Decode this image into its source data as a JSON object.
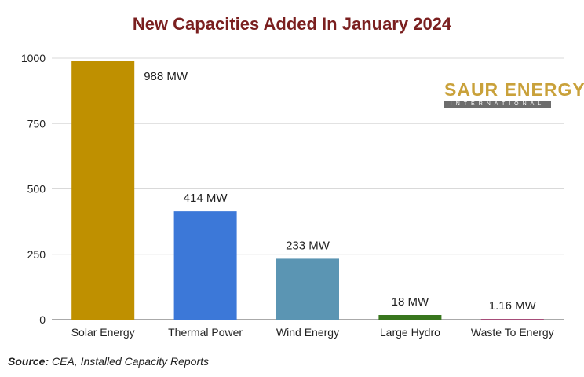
{
  "chart_data": {
    "type": "bar",
    "title": "New Capacities Added In January 2024",
    "categories": [
      "Solar Energy",
      "Thermal Power",
      "Wind Energy",
      "Large Hydro",
      "Waste To Energy"
    ],
    "values": [
      988,
      414,
      233,
      18,
      1.16
    ],
    "data_labels": [
      "988 MW",
      "414 MW",
      "233 MW",
      "18 MW",
      "1.16 MW"
    ],
    "colors": [
      "#bf9000",
      "#3c78d8",
      "#5b95b3",
      "#38761d",
      "#a64d79"
    ],
    "ylim": [
      0,
      1000
    ],
    "yticks": [
      0,
      250,
      500,
      750,
      1000
    ],
    "grid": true,
    "xlabel": "",
    "ylabel": ""
  },
  "logo": {
    "main_text": "SAUR ENERGY",
    "sub_text": "INTERNATIONAL"
  },
  "source": {
    "label": "Source:",
    "text": "CEA, Installed Capacity Reports"
  }
}
